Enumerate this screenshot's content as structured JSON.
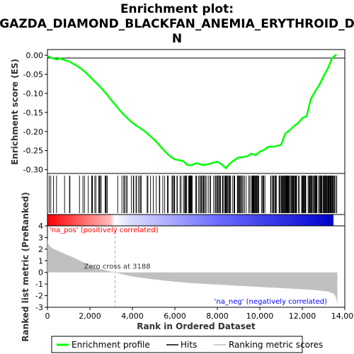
{
  "chart_data": {
    "type": "line",
    "title_lines": [
      "Enrichment plot:",
      "GAZDA_DIAMOND_BLACKFAN_ANEMIA_ERYTHROID_D",
      "N"
    ],
    "panels": {
      "enrichment": {
        "ylabel": "Enrichment score (ES)",
        "ylim": [
          -0.31,
          0.015
        ],
        "yticks": [
          "0.00",
          "-0.05",
          "-0.10",
          "-0.15",
          "-0.20",
          "-0.25",
          "-0.30"
        ],
        "ytick_values": [
          0.0,
          -0.05,
          -0.1,
          -0.15,
          -0.2,
          -0.25,
          -0.3
        ],
        "series": [
          {
            "name": "Enrichment profile",
            "color": "#00ff00",
            "x": [
              0,
              150,
              300,
              450,
              600,
              750,
              900,
              1050,
              1200,
              1400,
              1600,
              1800,
              2000,
              2200,
              2400,
              2600,
              2800,
              3000,
              3200,
              3400,
              3600,
              3800,
              4000,
              4200,
              4400,
              4600,
              4800,
              5000,
              5200,
              5400,
              5600,
              5800,
              6000,
              6200,
              6400,
              6600,
              6800,
              7000,
              7200,
              7400,
              7600,
              7800,
              8000,
              8200,
              8400,
              8600,
              8800,
              9000,
              9200,
              9400,
              9600,
              9800,
              10000,
              10200,
              10400,
              10600,
              10800,
              11000,
              11200,
              11400,
              11600,
              11800,
              12000,
              12200,
              12400,
              12600,
              12800,
              13000,
              13200,
              13400,
              13600
            ],
            "y": [
              -0.002,
              -0.006,
              -0.009,
              -0.011,
              -0.008,
              -0.012,
              -0.014,
              -0.017,
              -0.022,
              -0.028,
              -0.036,
              -0.045,
              -0.056,
              -0.067,
              -0.078,
              -0.09,
              -0.103,
              -0.117,
              -0.13,
              -0.144,
              -0.156,
              -0.167,
              -0.177,
              -0.185,
              -0.192,
              -0.2,
              -0.21,
              -0.22,
              -0.231,
              -0.244,
              -0.256,
              -0.266,
              -0.273,
              -0.275,
              -0.278,
              -0.288,
              -0.288,
              -0.283,
              -0.286,
              -0.288,
              -0.285,
              -0.282,
              -0.279,
              -0.286,
              -0.296,
              -0.283,
              -0.275,
              -0.268,
              -0.267,
              -0.265,
              -0.258,
              -0.262,
              -0.253,
              -0.248,
              -0.24,
              -0.24,
              -0.238,
              -0.235,
              -0.205,
              -0.197,
              -0.186,
              -0.178,
              -0.165,
              -0.16,
              -0.115,
              -0.095,
              -0.078,
              -0.055,
              -0.035,
              -0.008,
              0.002
            ]
          }
        ]
      },
      "hits": {
        "name": "Hits",
        "color": "#000000",
        "density_note": "gene set members along ranked list"
      },
      "ranked_metric": {
        "ylabel": "Ranked list metric (PreRanked)",
        "ylim": [
          -3,
          4
        ],
        "yticks": [
          "4",
          "3",
          "2",
          "1",
          "0",
          "-1",
          "-2",
          "-3"
        ],
        "ytick_values": [
          4,
          3,
          2,
          1,
          0,
          -1,
          -2,
          -3
        ],
        "series": [
          {
            "name": "Ranking metric scores",
            "color": "#c0c0c0",
            "x": [
              0,
              50,
              150,
              300,
              500,
              800,
              1200,
              1600,
              2000,
              2400,
              2800,
              3188,
              3600,
              4000,
              5000,
              6000,
              7000,
              8000,
              9000,
              10000,
              11000,
              12000,
              12800,
              13200,
              13450,
              13550,
              13600,
              13650
            ],
            "y": [
              2.8,
              2.4,
              2.2,
              2.0,
              1.85,
              1.6,
              1.3,
              0.95,
              0.6,
              0.35,
              0.15,
              0.0,
              -0.2,
              -0.35,
              -0.6,
              -0.8,
              -0.95,
              -1.05,
              -1.15,
              -1.25,
              -1.35,
              -1.45,
              -1.55,
              -1.65,
              -1.8,
              -2.0,
              -2.3,
              -2.7
            ]
          }
        ],
        "zero_cross_label": "Zero cross at 3188",
        "zero_cross_x": 3188,
        "pos_label": "'na_pos' (positively correlated)",
        "neg_label": "'na_neg' (negatively correlated)",
        "pos_color": "#ff0000",
        "neg_color": "#0000ff"
      }
    },
    "xlabel": "Rank in Ordered Dataset",
    "xlim": [
      0,
      14000
    ],
    "xticks": [
      "0",
      "2,000",
      "4,000",
      "6,000",
      "8,000",
      "10,000",
      "12,000",
      "14,000"
    ],
    "xtick_values": [
      0,
      2000,
      4000,
      6000,
      8000,
      10000,
      12000,
      14000
    ],
    "legend": {
      "placement": "bottom",
      "entries": [
        {
          "label": "Enrichment profile",
          "color": "#00ff00"
        },
        {
          "label": "Hits",
          "color": "#000000"
        },
        {
          "label": "Ranking metric scores",
          "color": "#c0c0c0"
        }
      ]
    }
  }
}
